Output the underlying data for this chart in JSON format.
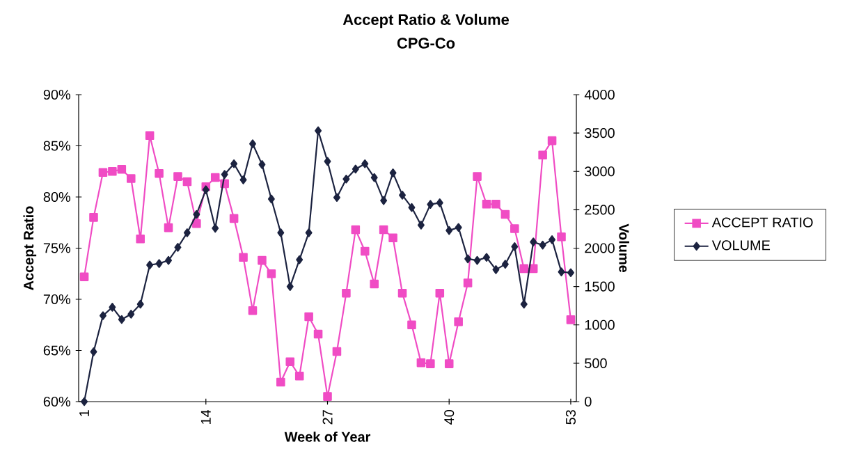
{
  "chart_data": {
    "type": "line",
    "title": "Accept Ratio & Volume",
    "subtitle": "CPG-Co",
    "xlabel": "Week of Year",
    "ylabel": "Accept Ratio",
    "y2label": "Volume",
    "x": [
      1,
      2,
      3,
      4,
      5,
      6,
      7,
      8,
      9,
      10,
      11,
      12,
      13,
      14,
      15,
      16,
      17,
      18,
      19,
      20,
      21,
      22,
      23,
      24,
      25,
      26,
      27,
      28,
      29,
      30,
      31,
      32,
      33,
      34,
      35,
      36,
      37,
      38,
      39,
      40,
      41,
      42,
      43,
      44,
      45,
      46,
      47,
      48,
      49,
      50,
      51,
      52,
      53
    ],
    "series": [
      {
        "name": "ACCEPT RATIO",
        "color": "#f04cc4",
        "marker": "square",
        "values": [
          72.2,
          78.0,
          82.4,
          82.5,
          82.7,
          81.8,
          75.9,
          86.0,
          82.3,
          77.0,
          82.0,
          81.5,
          77.4,
          81.0,
          81.9,
          81.3,
          77.9,
          74.1,
          68.9,
          73.8,
          72.5,
          61.9,
          63.9,
          62.5,
          68.3,
          66.6,
          60.5,
          64.9,
          70.6,
          76.8,
          74.7,
          71.5,
          76.8,
          76.0,
          70.6,
          67.5,
          63.8,
          63.7,
          70.6,
          63.7,
          67.8,
          71.6,
          82.0,
          79.3,
          79.3,
          78.3,
          76.9,
          73.0,
          73.0,
          84.1,
          85.5,
          76.1,
          68.0
        ]
      },
      {
        "name": "VOLUME",
        "axis": "y2",
        "color": "#1c2340",
        "marker": "diamond",
        "values": [
          0,
          650,
          1120,
          1230,
          1070,
          1140,
          1270,
          1780,
          1800,
          1840,
          2010,
          2200,
          2440,
          2760,
          2260,
          2960,
          3100,
          2890,
          3360,
          3090,
          2640,
          2200,
          1500,
          1850,
          2200,
          3530,
          3130,
          2660,
          2900,
          3030,
          3100,
          2920,
          2620,
          2980,
          2690,
          2530,
          2300,
          2570,
          2590,
          2230,
          2270,
          1860,
          1840,
          1880,
          1720,
          1790,
          2020,
          1270,
          2080,
          2040,
          2110,
          1690,
          1680
        ]
      }
    ],
    "xlim": [
      0.4,
      53.6
    ],
    "xticks": [
      1,
      14,
      27,
      40,
      53
    ],
    "ylim": [
      60,
      90
    ],
    "yticks": [
      {
        "value": 60,
        "label": "60%"
      },
      {
        "value": 65,
        "label": "65%"
      },
      {
        "value": 70,
        "label": "70%"
      },
      {
        "value": 75,
        "label": "75%"
      },
      {
        "value": 80,
        "label": "80%"
      },
      {
        "value": 85,
        "label": "85%"
      },
      {
        "value": 90,
        "label": "90%"
      }
    ],
    "y2lim": [
      0,
      4000
    ],
    "y2ticks": [
      0,
      500,
      1000,
      1500,
      2000,
      2500,
      3000,
      3500,
      4000
    ],
    "legend": "right",
    "grid": false
  }
}
